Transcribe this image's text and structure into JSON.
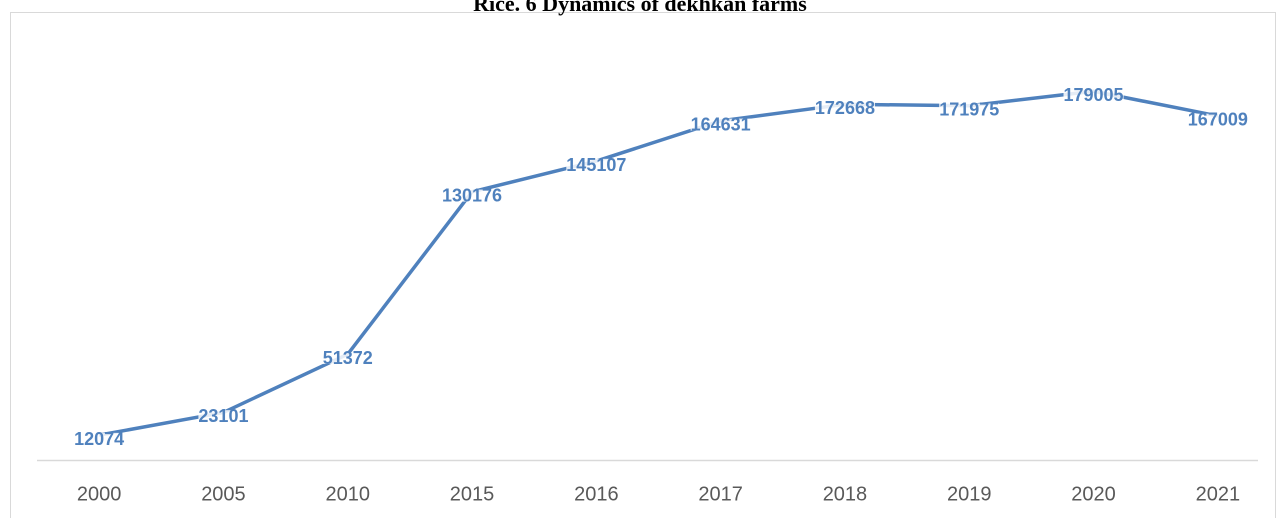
{
  "chart_data": {
    "type": "line",
    "title": "Rice. 6 Dynamics of dekhkan farms",
    "categories": [
      "2000",
      "2005",
      "2010",
      "2015",
      "2016",
      "2017",
      "2018",
      "2019",
      "2020",
      "2021"
    ],
    "series": [
      {
        "name": "Dekhkan farms",
        "color": "#4f81bd",
        "values": [
          12074,
          23101,
          51372,
          130176,
          145107,
          164631,
          172668,
          171975,
          179005,
          167009
        ]
      }
    ],
    "ylim": [
      0,
      200000
    ]
  }
}
